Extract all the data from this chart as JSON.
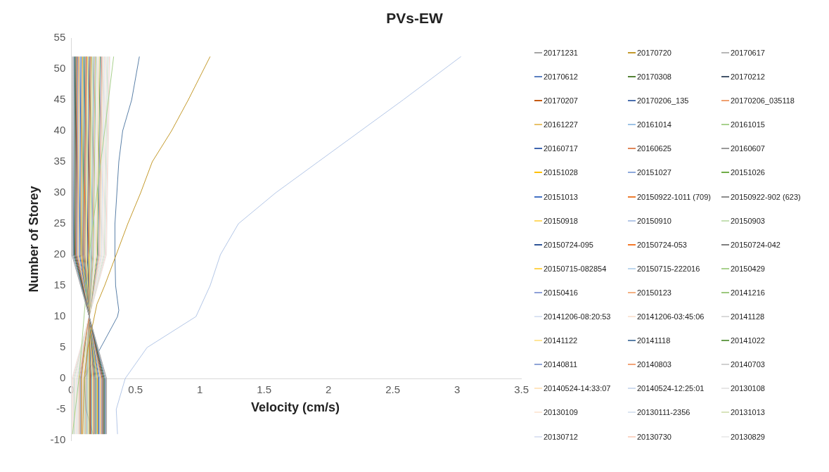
{
  "chart_data": {
    "type": "line",
    "title": "PVs-EW",
    "xlabel": "Velocity (cm/s)",
    "ylabel": "Number of Storey",
    "xlim": [
      0,
      3.5
    ],
    "xticks": [
      0,
      0.5,
      1,
      1.5,
      2,
      2.5,
      3,
      3.5
    ],
    "ylim": [
      -10,
      55
    ],
    "yticks": [
      -10,
      -5,
      0,
      5,
      10,
      15,
      20,
      25,
      30,
      35,
      40,
      45,
      50,
      55
    ],
    "grid": false,
    "legend": "right",
    "marker": "none",
    "series": [
      {
        "name": "20171231",
        "color": "#a5a5a5",
        "x": [
          0.275,
          0.275,
          0.005,
          0.01
        ],
        "values": [
          -9,
          0,
          20,
          52
        ]
      },
      {
        "name": "20170720",
        "color": "#c49a2c",
        "x": [
          0.09,
          0.1,
          0.13,
          0.18,
          0.2,
          0.26,
          0.35,
          0.44,
          0.54,
          0.63,
          0.78,
          0.91,
          1.08
        ],
        "values": [
          -9,
          0,
          5,
          10,
          12,
          15,
          20,
          25,
          30,
          35,
          40,
          45,
          52
        ]
      },
      {
        "name": "20170617",
        "color": "#b7b7b7",
        "x": [
          0.269,
          0.269,
          0.011,
          0.0165
        ],
        "values": [
          -9,
          0,
          20,
          52
        ]
      },
      {
        "name": "20170612",
        "color": "#5b7fc0",
        "x": [
          0.263,
          0.263,
          0.017,
          0.023
        ],
        "values": [
          -9,
          0,
          20,
          52
        ]
      },
      {
        "name": "20170308",
        "color": "#548235",
        "x": [
          0.257,
          0.257,
          0.023,
          0.0295
        ],
        "values": [
          -9,
          0,
          20,
          52
        ]
      },
      {
        "name": "20170212",
        "color": "#44546a",
        "x": [
          0.251,
          0.251,
          0.029,
          0.036
        ],
        "values": [
          -9,
          0,
          20,
          52
        ]
      },
      {
        "name": "20170207",
        "color": "#c55a11",
        "x": [
          0.245,
          0.245,
          0.035,
          0.0425
        ],
        "values": [
          -9,
          0,
          20,
          52
        ]
      },
      {
        "name": "20170206_135",
        "color": "#4a6fae",
        "x": [
          0.239,
          0.239,
          0.041,
          0.049
        ],
        "values": [
          -9,
          0,
          20,
          52
        ]
      },
      {
        "name": "20170206_035118",
        "color": "#f0a070",
        "x": [
          0.233,
          0.233,
          0.047,
          0.0555
        ],
        "values": [
          -9,
          0,
          20,
          52
        ]
      },
      {
        "name": "20161227",
        "color": "#e8c26a",
        "x": [
          0.227,
          0.227,
          0.053,
          0.062
        ],
        "values": [
          -9,
          0,
          20,
          52
        ]
      },
      {
        "name": "20161014",
        "color": "#9dc3e6",
        "x": [
          0.221,
          0.221,
          0.059,
          0.0685
        ],
        "values": [
          -9,
          0,
          20,
          52
        ]
      },
      {
        "name": "20161015",
        "color": "#a9d18e",
        "x": [
          0.01,
          0.06,
          0.1,
          0.14,
          0.2,
          0.26,
          0.33
        ],
        "values": [
          -9,
          0,
          10,
          20,
          30,
          40,
          52
        ]
      },
      {
        "name": "20160717",
        "color": "#3f66b0",
        "x": [
          0.215,
          0.215,
          0.065,
          0.075
        ],
        "values": [
          -9,
          0,
          20,
          52
        ]
      },
      {
        "name": "20160625",
        "color": "#e0875a",
        "x": [
          0.08,
          0.08,
          0.1,
          0.14,
          0.12,
          0.09,
          0.09,
          0.1,
          0.11,
          0.12
        ],
        "values": [
          -9,
          0,
          5,
          10,
          12,
          15,
          20,
          30,
          40,
          52
        ]
      },
      {
        "name": "20160607",
        "color": "#9a9a9a",
        "x": [
          0.209,
          0.209,
          0.071,
          0.0815
        ],
        "values": [
          -9,
          0,
          20,
          52
        ]
      },
      {
        "name": "20151028",
        "color": "#ffc000",
        "x": [
          0.203,
          0.203,
          0.077,
          0.088
        ],
        "values": [
          -9,
          0,
          20,
          52
        ]
      },
      {
        "name": "20151027",
        "color": "#8faadc",
        "x": [
          0.197,
          0.197,
          0.083,
          0.0945
        ],
        "values": [
          -9,
          0,
          20,
          52
        ]
      },
      {
        "name": "20151026",
        "color": "#70ad47",
        "x": [
          0.191,
          0.191,
          0.089,
          0.101
        ],
        "values": [
          -9,
          0,
          20,
          52
        ]
      },
      {
        "name": "20151013",
        "color": "#4472c4",
        "x": [
          0.185,
          0.185,
          0.095,
          0.1075
        ],
        "values": [
          -9,
          0,
          20,
          52
        ]
      },
      {
        "name": "20150922-1011 (709)",
        "color": "#ed7d31",
        "x": [
          0.179,
          0.179,
          0.101,
          0.114
        ],
        "values": [
          -9,
          0,
          20,
          52
        ]
      },
      {
        "name": "20150922-902 (623)",
        "color": "#8c8c8c",
        "x": [
          0.173,
          0.173,
          0.107,
          0.1205
        ],
        "values": [
          -9,
          0,
          20,
          52
        ]
      },
      {
        "name": "20150918",
        "color": "#ffd966",
        "x": [
          0.167,
          0.167,
          0.113,
          0.127
        ],
        "values": [
          -9,
          0,
          20,
          52
        ]
      },
      {
        "name": "20150910",
        "color": "#b4c7e7",
        "x": [
          0.36,
          0.35,
          0.42,
          0.59,
          0.97,
          1.08,
          1.16,
          1.3,
          1.59,
          1.92,
          2.25,
          2.58,
          3.03
        ],
        "values": [
          -9,
          -5,
          0,
          5,
          10,
          15,
          20,
          25,
          30,
          35,
          40,
          45,
          52
        ]
      },
      {
        "name": "20150903",
        "color": "#c5e0b4",
        "x": [
          0.161,
          0.161,
          0.119,
          0.1335
        ],
        "values": [
          -9,
          0,
          20,
          52
        ]
      },
      {
        "name": "20150724-095",
        "color": "#2f5597",
        "x": [
          0.155,
          0.155,
          0.125,
          0.14
        ],
        "values": [
          -9,
          0,
          20,
          52
        ]
      },
      {
        "name": "20150724-053",
        "color": "#f4792a",
        "x": [
          0.149,
          0.149,
          0.131,
          0.1465
        ],
        "values": [
          -9,
          0,
          20,
          52
        ]
      },
      {
        "name": "20150724-042",
        "color": "#7f7f7f",
        "x": [
          0.143,
          0.143,
          0.137,
          0.153
        ],
        "values": [
          -9,
          0,
          20,
          52
        ]
      },
      {
        "name": "20150715-082854",
        "color": "#ffd34d",
        "x": [
          0.137,
          0.137,
          0.143,
          0.1595
        ],
        "values": [
          -9,
          0,
          20,
          52
        ]
      },
      {
        "name": "20150715-222016",
        "color": "#bdd7ee",
        "x": [
          0.131,
          0.131,
          0.149,
          0.166
        ],
        "values": [
          -9,
          0,
          20,
          52
        ]
      },
      {
        "name": "20150429",
        "color": "#a9d18e",
        "x": [
          0.125,
          0.125,
          0.155,
          0.1725
        ],
        "values": [
          -9,
          0,
          20,
          52
        ]
      },
      {
        "name": "20150416",
        "color": "#8ea0d8",
        "x": [
          0.119,
          0.119,
          0.161,
          0.179
        ],
        "values": [
          -9,
          0,
          20,
          52
        ]
      },
      {
        "name": "20150123",
        "color": "#f4b183",
        "x": [
          0.113,
          0.113,
          0.167,
          0.1855
        ],
        "values": [
          -9,
          0,
          20,
          52
        ]
      },
      {
        "name": "20141216",
        "color": "#9cc87e",
        "x": [
          0.107,
          0.107,
          0.173,
          0.192
        ],
        "values": [
          -9,
          0,
          20,
          52
        ]
      },
      {
        "name": "20141206-08:20:53",
        "color": "#dae3f3",
        "x": [
          0.101,
          0.101,
          0.179,
          0.1985
        ],
        "values": [
          -9,
          0,
          20,
          52
        ]
      },
      {
        "name": "20141206-03:45:06",
        "color": "#fbe5d6",
        "x": [
          0.095,
          0.095,
          0.185,
          0.205
        ],
        "values": [
          -9,
          0,
          20,
          52
        ]
      },
      {
        "name": "20141128",
        "color": "#d9d9d9",
        "x": [
          0.089,
          0.089,
          0.191,
          0.2115
        ],
        "values": [
          -9,
          0,
          20,
          52
        ]
      },
      {
        "name": "20141122",
        "color": "#ffe699",
        "x": [
          0.083,
          0.083,
          0.197,
          0.218
        ],
        "values": [
          -9,
          0,
          20,
          52
        ]
      },
      {
        "name": "20141118",
        "color": "#5b80a8",
        "x": [
          0.17,
          0.115,
          0.1,
          0.23,
          0.36,
          0.37,
          0.345,
          0.34,
          0.34,
          0.355,
          0.37,
          0.4,
          0.47,
          0.53
        ],
        "values": [
          -9,
          -5,
          0,
          5,
          10,
          11,
          15,
          20,
          25,
          30,
          35,
          40,
          45,
          52
        ]
      },
      {
        "name": "20141022",
        "color": "#6a9e4f",
        "x": [
          0.077,
          0.077,
          0.203,
          0.2245
        ],
        "values": [
          -9,
          0,
          20,
          52
        ]
      },
      {
        "name": "20140811",
        "color": "#8fa4d6",
        "x": [
          0.071,
          0.071,
          0.209,
          0.231
        ],
        "values": [
          -9,
          0,
          20,
          52
        ]
      },
      {
        "name": "20140803",
        "color": "#f2a478",
        "x": [
          0.065,
          0.065,
          0.215,
          0.2375
        ],
        "values": [
          -9,
          0,
          20,
          52
        ]
      },
      {
        "name": "20140703",
        "color": "#d0d0d0",
        "x": [
          0.059,
          0.059,
          0.221,
          0.244
        ],
        "values": [
          -9,
          0,
          20,
          52
        ]
      },
      {
        "name": "20140524-14:33:07",
        "color": "#ffe5c0",
        "x": [
          0.053,
          0.053,
          0.227,
          0.2505
        ],
        "values": [
          -9,
          0,
          20,
          52
        ]
      },
      {
        "name": "20140524-12:25:01",
        "color": "#cfdcef",
        "x": [
          0.047,
          0.047,
          0.233,
          0.257
        ],
        "values": [
          -9,
          0,
          20,
          52
        ]
      },
      {
        "name": "20130108",
        "color": "#e7e6e6",
        "x": [
          0.041,
          0.041,
          0.239,
          0.2635
        ],
        "values": [
          -9,
          0,
          20,
          52
        ]
      },
      {
        "name": "20130109",
        "color": "#fde9d9",
        "x": [
          0.035,
          0.035,
          0.245,
          0.27
        ],
        "values": [
          -9,
          0,
          20,
          52
        ]
      },
      {
        "name": "20130111-2356",
        "color": "#dbe5f1",
        "x": [
          0.029,
          0.029,
          0.251,
          0.2765
        ],
        "values": [
          -9,
          0,
          20,
          52
        ]
      },
      {
        "name": "20131013",
        "color": "#d8e4bc",
        "x": [
          0.023,
          0.023,
          0.257,
          0.283
        ],
        "values": [
          -9,
          0,
          20,
          52
        ]
      },
      {
        "name": "20130712",
        "color": "#dde3f3",
        "x": [
          0.017,
          0.017,
          0.263,
          0.2895
        ],
        "values": [
          -9,
          0,
          20,
          52
        ]
      },
      {
        "name": "20130730",
        "color": "#fbd5c5",
        "x": [
          0.011,
          0.011,
          0.269,
          0.296
        ],
        "values": [
          -9,
          0,
          20,
          52
        ]
      },
      {
        "name": "20130829",
        "color": "#ececec",
        "x": [
          0.005,
          0.005,
          0.275,
          0.3025
        ],
        "values": [
          -9,
          0,
          20,
          52
        ]
      }
    ]
  }
}
